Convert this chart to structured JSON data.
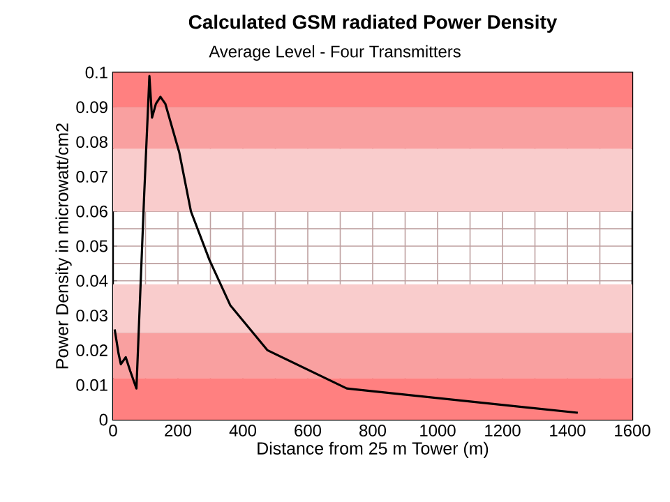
{
  "chart_data": {
    "type": "line",
    "title": "Calculated GSM radiated Power Density",
    "subtitle": "Average Level - Four Transmitters",
    "xlabel": "Distance from 25 m Tower (m)",
    "ylabel": "Power Density in microwatt/cm2",
    "x": [
      5,
      17,
      24,
      39,
      53,
      72,
      96,
      112,
      120,
      132,
      146,
      161,
      204,
      240,
      297,
      361,
      476,
      720,
      1432
    ],
    "series": [
      {
        "color": "#000000",
        "values": [
          0.026,
          0.019,
          0.016,
          0.018,
          0.014,
          0.009,
          0.065,
          0.099,
          0.087,
          0.091,
          0.093,
          0.091,
          0.077,
          0.06,
          0.046,
          0.033,
          0.02,
          0.009,
          0.002
        ]
      }
    ],
    "xlim": [
      0,
      1600
    ],
    "xticks": [
      0,
      200,
      400,
      600,
      800,
      1000,
      1200,
      1400,
      1600
    ],
    "ylim": [
      0,
      0.1
    ],
    "yticks": [
      0,
      0.01,
      0.02,
      0.03,
      0.04,
      0.05,
      0.06,
      0.07,
      0.08,
      0.09,
      0.1
    ],
    "grid": true,
    "line_style": "solid",
    "bands": [
      {
        "axis": "y",
        "from": 0,
        "to": 0.012,
        "color": "#ff8080"
      },
      {
        "axis": "y",
        "from": 0.012,
        "to": 0.025,
        "color": "#f9a0a0"
      },
      {
        "axis": "y",
        "from": 0.025,
        "to": 0.039,
        "color": "#f9cccc"
      },
      {
        "axis": "y",
        "from": 0.06,
        "to": 0.078,
        "color": "#f9cccc"
      },
      {
        "axis": "y",
        "from": 0.078,
        "to": 0.09,
        "color": "#f9a0a0"
      },
      {
        "axis": "y",
        "from": 0.09,
        "to": 0.1,
        "color": "#ff8080"
      }
    ]
  }
}
